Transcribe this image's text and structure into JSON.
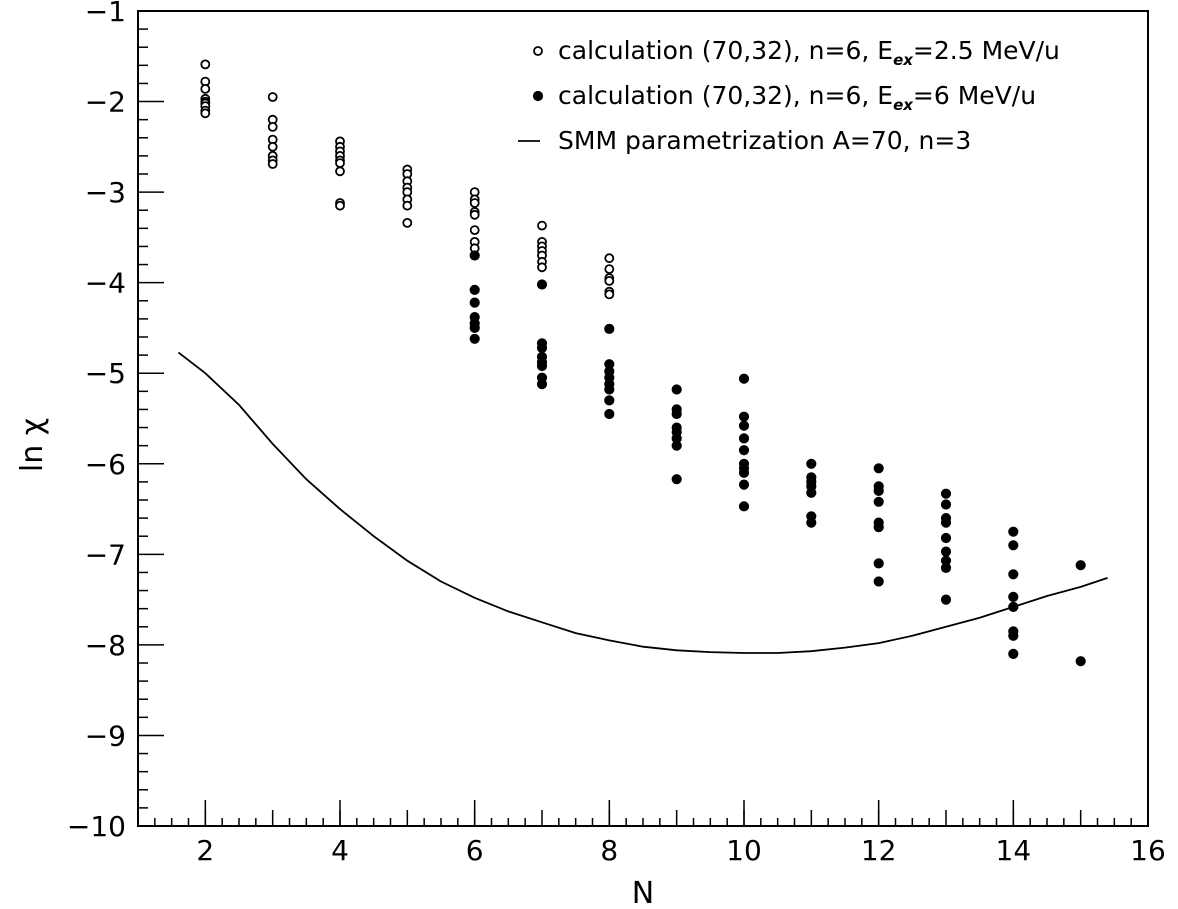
{
  "chart_data": {
    "type": "scatter",
    "title": "",
    "xlabel": "N",
    "ylabel": "ln χ",
    "xlim": [
      1,
      16
    ],
    "ylim": [
      -10,
      -1
    ],
    "x_ticks": [
      2,
      4,
      6,
      8,
      10,
      12,
      14,
      16
    ],
    "y_ticks": [
      -10,
      -9,
      -8,
      -7,
      -6,
      -5,
      -4,
      -3,
      -2,
      -1
    ],
    "grid": false,
    "legend_position": "top-right",
    "legend": [
      {
        "marker": "open-circle",
        "text": "calculation  (70,32), n=6, E",
        "sub": "ex",
        "suffix": "=2.5 MeV/u"
      },
      {
        "marker": "filled-circle",
        "text": "calculation  (70,32), n=6, E",
        "sub": "ex",
        "suffix": "=6 MeV/u"
      },
      {
        "marker": "line",
        "text": "SMM parametrization  A=70, n=3",
        "sub": "",
        "suffix": ""
      }
    ],
    "series": [
      {
        "name": "calculation  (70,32), n=6, Eex=2.5 MeV/u",
        "marker": "open",
        "points": [
          [
            2,
            -1.59
          ],
          [
            2,
            -1.78
          ],
          [
            2,
            -1.86
          ],
          [
            2,
            -1.97
          ],
          [
            2,
            -2.0
          ],
          [
            2,
            -2.02
          ],
          [
            2,
            -2.05
          ],
          [
            2,
            -2.1
          ],
          [
            2,
            -2.13
          ],
          [
            3,
            -1.95
          ],
          [
            3,
            -2.2
          ],
          [
            3,
            -2.28
          ],
          [
            3,
            -2.42
          ],
          [
            3,
            -2.5
          ],
          [
            3,
            -2.6
          ],
          [
            3,
            -2.65
          ],
          [
            3,
            -2.69
          ],
          [
            4,
            -2.44
          ],
          [
            4,
            -2.5
          ],
          [
            4,
            -2.55
          ],
          [
            4,
            -2.6
          ],
          [
            4,
            -2.65
          ],
          [
            4,
            -2.68
          ],
          [
            4,
            -2.77
          ],
          [
            4,
            -3.12
          ],
          [
            4,
            -3.15
          ],
          [
            5,
            -2.75
          ],
          [
            5,
            -2.8
          ],
          [
            5,
            -2.88
          ],
          [
            5,
            -2.95
          ],
          [
            5,
            -3.0
          ],
          [
            5,
            -3.08
          ],
          [
            5,
            -3.15
          ],
          [
            5,
            -3.34
          ],
          [
            6,
            -3.0
          ],
          [
            6,
            -3.08
          ],
          [
            6,
            -3.12
          ],
          [
            6,
            -3.22
          ],
          [
            6,
            -3.25
          ],
          [
            6,
            -3.42
          ],
          [
            6,
            -3.55
          ],
          [
            6,
            -3.62
          ],
          [
            7,
            -3.37
          ],
          [
            7,
            -3.55
          ],
          [
            7,
            -3.6
          ],
          [
            7,
            -3.65
          ],
          [
            7,
            -3.7
          ],
          [
            7,
            -3.77
          ],
          [
            7,
            -3.83
          ],
          [
            8,
            -3.73
          ],
          [
            8,
            -3.85
          ],
          [
            8,
            -3.95
          ],
          [
            8,
            -3.98
          ],
          [
            8,
            -4.1
          ],
          [
            8,
            -4.13
          ]
        ]
      },
      {
        "name": "calculation  (70,32), n=6, Eex=6 MeV/u",
        "marker": "filled",
        "points": [
          [
            6,
            -3.7
          ],
          [
            6,
            -4.08
          ],
          [
            6,
            -4.22
          ],
          [
            6,
            -4.38
          ],
          [
            6,
            -4.45
          ],
          [
            6,
            -4.5
          ],
          [
            6,
            -4.62
          ],
          [
            7,
            -4.02
          ],
          [
            7,
            -4.67
          ],
          [
            7,
            -4.72
          ],
          [
            7,
            -4.82
          ],
          [
            7,
            -4.88
          ],
          [
            7,
            -4.92
          ],
          [
            7,
            -5.05
          ],
          [
            7,
            -5.12
          ],
          [
            8,
            -4.51
          ],
          [
            8,
            -4.9
          ],
          [
            8,
            -4.98
          ],
          [
            8,
            -5.05
          ],
          [
            8,
            -5.12
          ],
          [
            8,
            -5.18
          ],
          [
            8,
            -5.3
          ],
          [
            8,
            -5.45
          ],
          [
            9,
            -5.18
          ],
          [
            9,
            -5.4
          ],
          [
            9,
            -5.45
          ],
          [
            9,
            -5.6
          ],
          [
            9,
            -5.65
          ],
          [
            9,
            -5.72
          ],
          [
            9,
            -5.8
          ],
          [
            9,
            -6.17
          ],
          [
            10,
            -5.06
          ],
          [
            10,
            -5.48
          ],
          [
            10,
            -5.58
          ],
          [
            10,
            -5.72
          ],
          [
            10,
            -5.85
          ],
          [
            10,
            -6.0
          ],
          [
            10,
            -6.05
          ],
          [
            10,
            -6.1
          ],
          [
            10,
            -6.23
          ],
          [
            10,
            -6.47
          ],
          [
            11,
            -6.0
          ],
          [
            11,
            -6.15
          ],
          [
            11,
            -6.2
          ],
          [
            11,
            -6.25
          ],
          [
            11,
            -6.32
          ],
          [
            11,
            -6.58
          ],
          [
            11,
            -6.65
          ],
          [
            12,
            -6.05
          ],
          [
            12,
            -6.25
          ],
          [
            12,
            -6.3
          ],
          [
            12,
            -6.42
          ],
          [
            12,
            -6.65
          ],
          [
            12,
            -6.7
          ],
          [
            12,
            -7.1
          ],
          [
            12,
            -7.3
          ],
          [
            13,
            -6.33
          ],
          [
            13,
            -6.45
          ],
          [
            13,
            -6.6
          ],
          [
            13,
            -6.65
          ],
          [
            13,
            -6.82
          ],
          [
            13,
            -6.97
          ],
          [
            13,
            -7.07
          ],
          [
            13,
            -7.15
          ],
          [
            13,
            -7.5
          ],
          [
            14,
            -6.75
          ],
          [
            14,
            -6.9
          ],
          [
            14,
            -7.22
          ],
          [
            14,
            -7.47
          ],
          [
            14,
            -7.58
          ],
          [
            14,
            -7.85
          ],
          [
            14,
            -7.9
          ],
          [
            14,
            -8.1
          ],
          [
            15,
            -7.12
          ],
          [
            15,
            -8.18
          ]
        ]
      },
      {
        "name": "SMM parametrization  A=70, n=3",
        "marker": "line",
        "points": [
          [
            1.6,
            -4.77
          ],
          [
            2,
            -5.0
          ],
          [
            2.5,
            -5.35
          ],
          [
            3,
            -5.78
          ],
          [
            3.5,
            -6.17
          ],
          [
            4,
            -6.5
          ],
          [
            4.5,
            -6.8
          ],
          [
            5,
            -7.07
          ],
          [
            5.5,
            -7.3
          ],
          [
            6,
            -7.48
          ],
          [
            6.5,
            -7.63
          ],
          [
            7,
            -7.75
          ],
          [
            7.5,
            -7.87
          ],
          [
            8,
            -7.95
          ],
          [
            8.5,
            -8.02
          ],
          [
            9,
            -8.06
          ],
          [
            9.5,
            -8.08
          ],
          [
            10,
            -8.09
          ],
          [
            10.5,
            -8.09
          ],
          [
            11,
            -8.07
          ],
          [
            11.5,
            -8.03
          ],
          [
            12,
            -7.98
          ],
          [
            12.5,
            -7.9
          ],
          [
            13,
            -7.8
          ],
          [
            13.5,
            -7.7
          ],
          [
            14,
            -7.58
          ],
          [
            14.5,
            -7.46
          ],
          [
            15,
            -7.36
          ],
          [
            15.4,
            -7.26
          ]
        ]
      }
    ]
  }
}
